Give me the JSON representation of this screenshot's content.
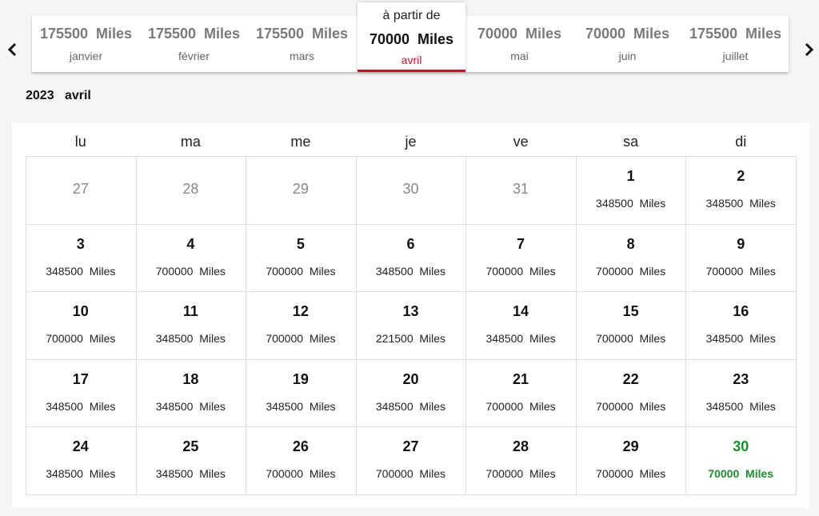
{
  "year": "2023",
  "month": "avril",
  "unit": "Miles",
  "tabs": [
    {
      "amount": 175500,
      "month": "janvier"
    },
    {
      "amount": 175500,
      "month": "février"
    },
    {
      "amount": 175500,
      "month": "mars"
    },
    {
      "prefix": "à partir de",
      "amount": 70000,
      "month": "avril",
      "selected": true
    },
    {
      "amount": 70000,
      "month": "mai"
    },
    {
      "amount": 70000,
      "month": "juin"
    },
    {
      "amount": 175500,
      "month": "juillet"
    }
  ],
  "weekdays": [
    "lu",
    "ma",
    "me",
    "je",
    "ve",
    "sa",
    "di"
  ],
  "weeks": [
    [
      {
        "day": 27
      },
      {
        "day": 28
      },
      {
        "day": 29
      },
      {
        "day": 30
      },
      {
        "day": 31
      },
      {
        "day": 1,
        "amount": 348500
      },
      {
        "day": 2,
        "amount": 348500
      }
    ],
    [
      {
        "day": 3,
        "amount": 348500
      },
      {
        "day": 4,
        "amount": 700000
      },
      {
        "day": 5,
        "amount": 700000
      },
      {
        "day": 6,
        "amount": 348500
      },
      {
        "day": 7,
        "amount": 700000
      },
      {
        "day": 8,
        "amount": 700000
      },
      {
        "day": 9,
        "amount": 700000
      }
    ],
    [
      {
        "day": 10,
        "amount": 700000
      },
      {
        "day": 11,
        "amount": 348500
      },
      {
        "day": 12,
        "amount": 700000
      },
      {
        "day": 13,
        "amount": 221500
      },
      {
        "day": 14,
        "amount": 348500
      },
      {
        "day": 15,
        "amount": 700000
      },
      {
        "day": 16,
        "amount": 348500
      }
    ],
    [
      {
        "day": 17,
        "amount": 348500
      },
      {
        "day": 18,
        "amount": 348500
      },
      {
        "day": 19,
        "amount": 348500
      },
      {
        "day": 20,
        "amount": 348500
      },
      {
        "day": 21,
        "amount": 700000
      },
      {
        "day": 22,
        "amount": 700000
      },
      {
        "day": 23,
        "amount": 348500
      }
    ],
    [
      {
        "day": 24,
        "amount": 348500
      },
      {
        "day": 25,
        "amount": 348500
      },
      {
        "day": 26,
        "amount": 700000
      },
      {
        "day": 27,
        "amount": 700000
      },
      {
        "day": 28,
        "amount": 700000
      },
      {
        "day": 29,
        "amount": 700000
      },
      {
        "day": 30,
        "amount": 70000,
        "selected": true
      }
    ]
  ]
}
